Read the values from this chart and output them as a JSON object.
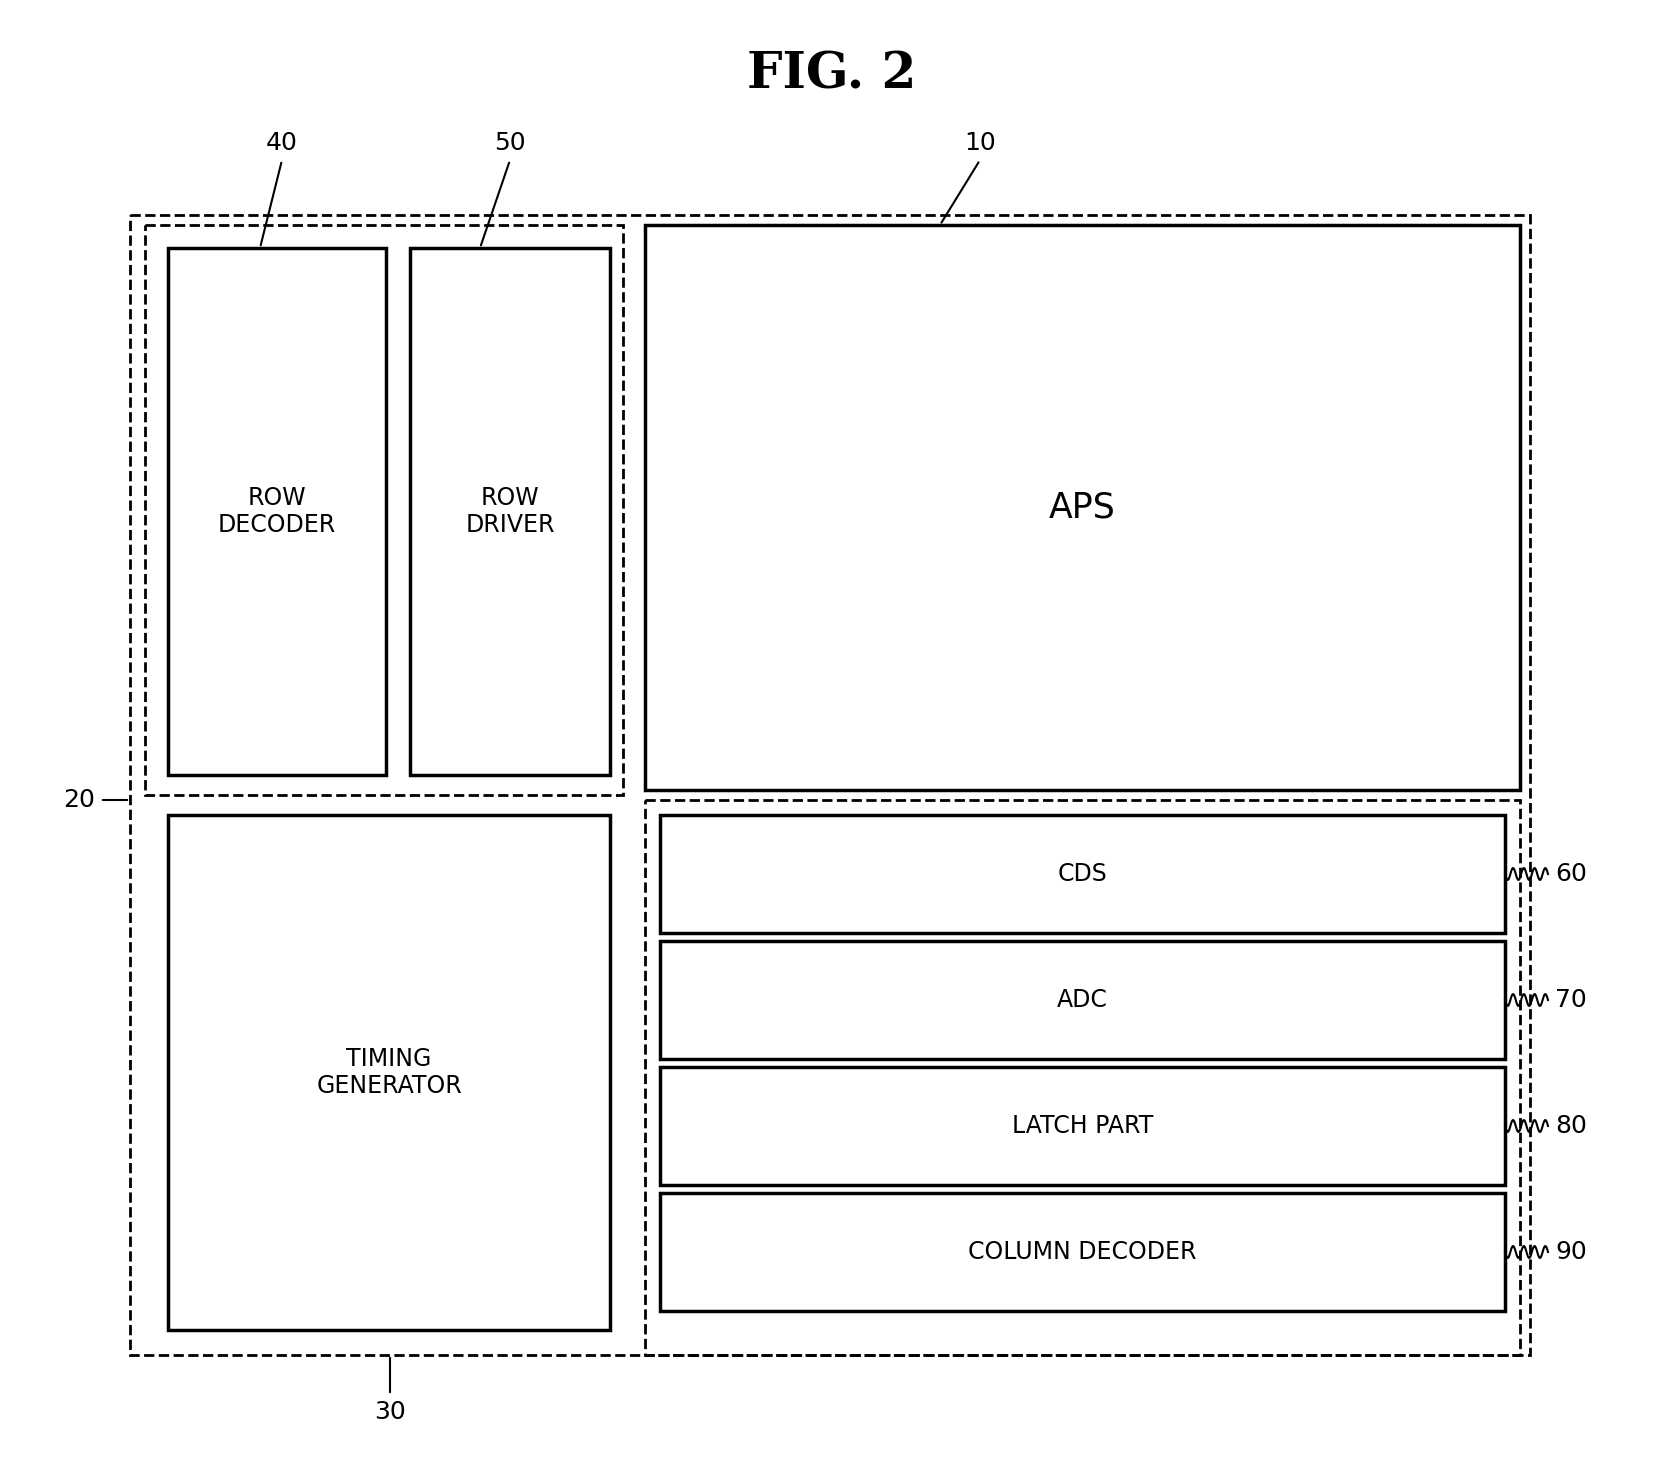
{
  "title": "FIG. 2",
  "title_fontsize": 36,
  "title_fontweight": "bold",
  "bg_color": "#ffffff",
  "fig_width": 16.64,
  "fig_height": 14.79,
  "dpi": 100,
  "labels": {
    "row_decoder": "ROW\nDECODER",
    "row_driver": "ROW\nDRIVER",
    "aps": "APS",
    "timing_gen": "TIMING\nGENERATOR",
    "cds": "CDS",
    "adc": "ADC",
    "latch": "LATCH PART",
    "col_dec": "COLUMN DECODER"
  },
  "fs_label": 17,
  "fs_callout": 18,
  "lw_solid": 2.5,
  "lw_dashed": 2.0
}
